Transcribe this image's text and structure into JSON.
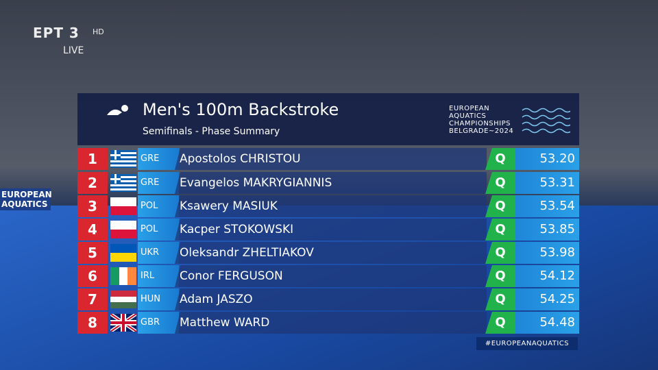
{
  "broadcaster": {
    "logo": "ΕΡΤ 3",
    "quality": "HD",
    "status": "LIVE"
  },
  "scene": {
    "signage": "EUROPEAN AQUATICS"
  },
  "header": {
    "title": "Men's 100m Backstroke",
    "subtitle": "Semifinals - Phase Summary",
    "event_logo": [
      "EUROPEAN",
      "AQUATICS",
      "CHAMPIONSHIPS",
      "BELGRADE~2024"
    ]
  },
  "table": {
    "rows": [
      {
        "rank": 1,
        "country": "GRE",
        "name": "Apostolos CHRISTOU",
        "qualifier": "Q",
        "time": "53.20"
      },
      {
        "rank": 2,
        "country": "GRE",
        "name": "Evangelos MAKRYGIANNIS",
        "qualifier": "Q",
        "time": "53.31"
      },
      {
        "rank": 3,
        "country": "POL",
        "name": "Ksawery MASIUK",
        "qualifier": "Q",
        "time": "53.54"
      },
      {
        "rank": 4,
        "country": "POL",
        "name": "Kacper STOKOWSKI",
        "qualifier": "Q",
        "time": "53.85"
      },
      {
        "rank": 5,
        "country": "UKR",
        "name": "Oleksandr ZHELTIAKOV",
        "qualifier": "Q",
        "time": "53.98"
      },
      {
        "rank": 6,
        "country": "IRL",
        "name": "Conor FERGUSON",
        "qualifier": "Q",
        "time": "54.12"
      },
      {
        "rank": 7,
        "country": "HUN",
        "name": "Adam JASZO",
        "qualifier": "Q",
        "time": "54.25"
      },
      {
        "rank": 8,
        "country": "GBR",
        "name": "Matthew WARD",
        "qualifier": "Q",
        "time": "54.48"
      }
    ]
  },
  "hashtag": "#EUROPEANAQUATICS"
}
